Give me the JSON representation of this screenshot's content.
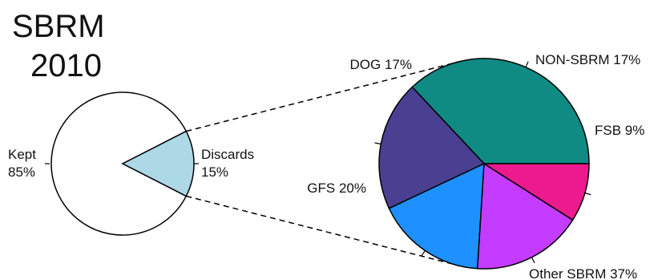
{
  "chart_data": [
    {
      "type": "pie",
      "title_lines": [
        "SBRM",
        "2010"
      ],
      "slices": [
        {
          "label_lines": [
            "Kept",
            "85%"
          ],
          "value": 85,
          "color": "#ffffff"
        },
        {
          "label_lines": [
            "Discards",
            "15%"
          ],
          "value": 15,
          "color": "#add8e6"
        }
      ]
    },
    {
      "type": "pie",
      "slices": [
        {
          "label": "Other SBRM 37%",
          "value": 37,
          "color": "#0f8b84"
        },
        {
          "label": "GFS 20%",
          "value": 20,
          "color": "#4b3f91"
        },
        {
          "label": "DOG 17%",
          "value": 17,
          "color": "#1e90ff"
        },
        {
          "label": "NON-SBRM 17%",
          "value": 17,
          "color": "#c43cff"
        },
        {
          "label": "FSB 9%",
          "value": 9,
          "color": "#ec1a8e"
        }
      ]
    }
  ]
}
